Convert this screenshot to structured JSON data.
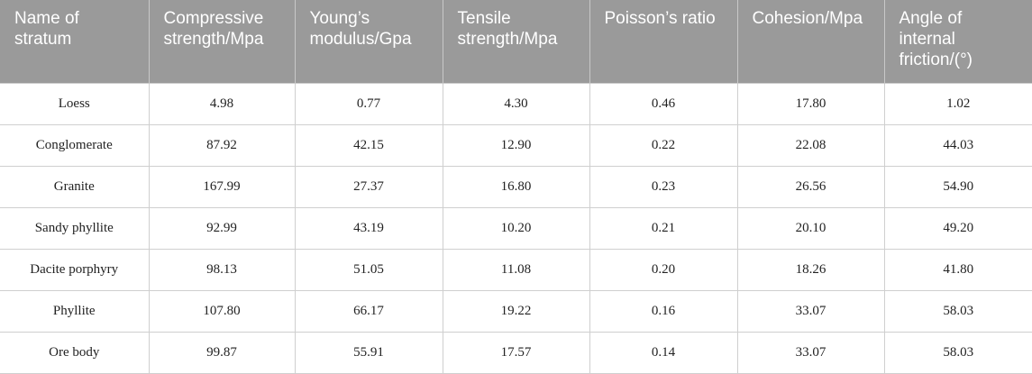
{
  "table": {
    "header": [
      "Name of stratum",
      "Compressive strength/Mpa",
      "Young’s modulus/Gpa",
      "Tensile strength/Mpa",
      "Poisson’s ratio",
      "Cohesion/Mpa",
      "Angle of internal friction/(°)"
    ],
    "rows": [
      [
        "Loess",
        "4.98",
        "0.77",
        "4.30",
        "0.46",
        "17.80",
        "1.02"
      ],
      [
        "Conglomerate",
        "87.92",
        "42.15",
        "12.90",
        "0.22",
        "22.08",
        "44.03"
      ],
      [
        "Granite",
        "167.99",
        "27.37",
        "16.80",
        "0.23",
        "26.56",
        "54.90"
      ],
      [
        "Sandy phyllite",
        "92.99",
        "43.19",
        "10.20",
        "0.21",
        "20.10",
        "49.20"
      ],
      [
        "Dacite porphyry",
        "98.13",
        "51.05",
        "11.08",
        "0.20",
        "18.26",
        "41.80"
      ],
      [
        "Phyllite",
        "107.80",
        "66.17",
        "19.22",
        "0.16",
        "33.07",
        "58.03"
      ],
      [
        "Ore body",
        "99.87",
        "55.91",
        "17.57",
        "0.14",
        "33.07",
        "58.03"
      ]
    ]
  }
}
